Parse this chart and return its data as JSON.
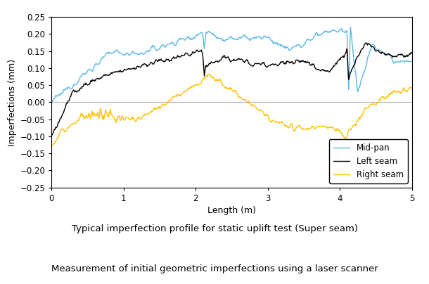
{
  "title1": "Typical imperfection profile for static uplift test (Super seam)",
  "title2": "Measurement of initial geometric imperfections using a laser scanner",
  "xlabel": "Length (m)",
  "ylabel": "Imperfections (mm)",
  "xlim": [
    0,
    5
  ],
  "ylim": [
    -0.25,
    0.25
  ],
  "xticks": [
    0,
    1,
    2,
    3,
    4,
    5
  ],
  "yticks": [
    -0.25,
    -0.2,
    -0.15,
    -0.1,
    -0.05,
    0,
    0.05,
    0.1,
    0.15,
    0.2,
    0.25
  ],
  "legend_labels": [
    "Mid-pan",
    "Left seam",
    "Right seam"
  ],
  "colors": {
    "mid_pan": "#5BB8E8",
    "left_seam": "#000000",
    "right_seam": "#FFC000"
  },
  "linewidth": 1.0,
  "background_color": "#ffffff",
  "zero_line_color": "#b0b0b0"
}
